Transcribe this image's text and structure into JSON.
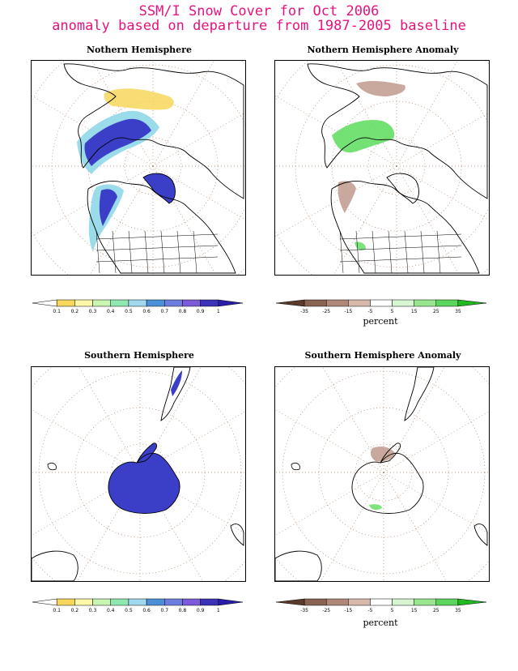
{
  "title_line1": "SSM/I Snow Cover for Oct 2006",
  "title_line2": "anomaly based on departure from 1987-2005 baseline",
  "panels": {
    "nh": {
      "title": "Nothern Hemisphere"
    },
    "nh_anom": {
      "title": "Nothern Hemisphere Anomaly"
    },
    "sh": {
      "title": "Southern Hemisphere"
    },
    "sh_anom": {
      "title": "Southern Hemisphere Anomaly"
    }
  },
  "snow_colorbar": {
    "labels": [
      "0.1",
      "0.2",
      "0.3",
      "0.4",
      "0.5",
      "0.6",
      "0.7",
      "0.8",
      "0.9",
      "1"
    ],
    "colors": [
      "#ffffff",
      "#f6d75c",
      "#fff7a8",
      "#c9f5b2",
      "#8fe8b0",
      "#a0d8f0",
      "#4b8fd8",
      "#6c7de0",
      "#7b5bd8",
      "#3b32b8",
      "#2a1ea8"
    ]
  },
  "anomaly_colorbar": {
    "labels": [
      "-35",
      "-25",
      "-15",
      "-5",
      "5",
      "15",
      "25",
      "35"
    ],
    "colors": [
      "#5b3a2c",
      "#8a6352",
      "#b08878",
      "#d9b8ac",
      "#ffffff",
      "#d6f5d0",
      "#98e68e",
      "#5cd55c",
      "#22b822"
    ],
    "unit": "percent"
  },
  "colors": {
    "title": "#e8127f",
    "grid": "#b08060",
    "snow_core": "#3b3fc8",
    "snow_edge": "#8fd8e8",
    "snow_low": "#f6d75c",
    "anom_neg": "#c09a8c",
    "anom_pos": "#5cdc5c"
  }
}
